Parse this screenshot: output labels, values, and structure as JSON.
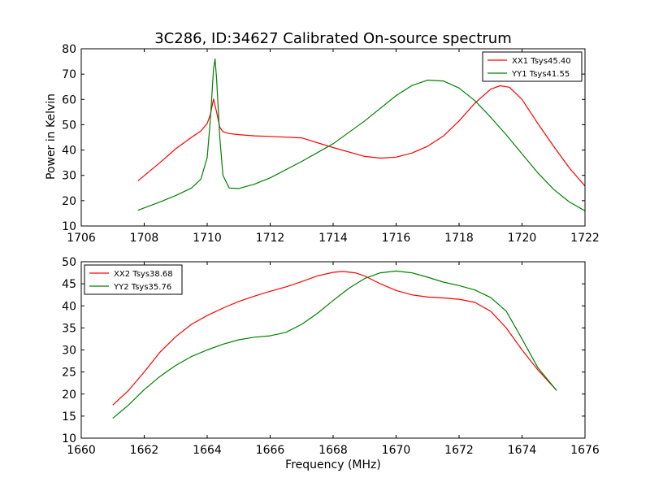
{
  "title": "3C286, ID:34627 Calibrated On-source spectrum",
  "chart_data": [
    {
      "type": "line",
      "ylabel": "Power in Kelvin",
      "xlabel": "",
      "xlim": [
        1706,
        1722
      ],
      "ylim": [
        10,
        80
      ],
      "xticks": [
        1706,
        1708,
        1710,
        1712,
        1714,
        1716,
        1718,
        1720,
        1722
      ],
      "yticks": [
        10,
        20,
        30,
        40,
        50,
        60,
        70,
        80
      ],
      "grid": false,
      "legend_position": "top-right",
      "series": [
        {
          "name": "XX1 Tsys45.40",
          "color": "#ff0000",
          "x": [
            1707.8,
            1708.5,
            1709.0,
            1709.5,
            1709.8,
            1710.0,
            1710.1,
            1710.2,
            1710.3,
            1710.4,
            1710.5,
            1710.7,
            1711.0,
            1711.5,
            1712.0,
            1713.0,
            1714.0,
            1715.0,
            1715.5,
            1716.0,
            1716.5,
            1717.0,
            1717.5,
            1718.0,
            1718.5,
            1719.0,
            1719.3,
            1719.6,
            1720.0,
            1720.5,
            1721.0,
            1721.5,
            1722.0
          ],
          "y": [
            27.8,
            35.0,
            40.5,
            45.0,
            47.5,
            50.5,
            54.0,
            60.2,
            55.0,
            49.0,
            47.2,
            46.5,
            46.1,
            45.6,
            45.4,
            44.8,
            41.0,
            37.5,
            36.8,
            37.2,
            38.8,
            41.5,
            45.5,
            51.5,
            58.5,
            64.0,
            65.4,
            64.8,
            60.0,
            50.5,
            41.5,
            33.0,
            25.8
          ]
        },
        {
          "name": "YY1 Tsys41.55",
          "color": "#008000",
          "x": [
            1707.8,
            1708.5,
            1709.0,
            1709.5,
            1709.8,
            1710.0,
            1710.1,
            1710.2,
            1710.25,
            1710.3,
            1710.4,
            1710.5,
            1710.7,
            1711.0,
            1711.5,
            1712.0,
            1713.0,
            1714.0,
            1715.0,
            1716.0,
            1716.5,
            1717.0,
            1717.5,
            1718.0,
            1718.5,
            1719.0,
            1719.5,
            1720.0,
            1720.5,
            1721.0,
            1721.5,
            1722.0
          ],
          "y": [
            16.2,
            19.5,
            22.0,
            25.0,
            28.5,
            37.0,
            52.0,
            72.0,
            76.0,
            68.0,
            45.0,
            30.0,
            25.0,
            24.8,
            26.5,
            29.0,
            35.5,
            42.5,
            51.5,
            61.5,
            65.5,
            67.6,
            67.3,
            64.5,
            59.5,
            53.0,
            46.0,
            38.5,
            31.0,
            24.5,
            19.5,
            16.0
          ]
        }
      ]
    },
    {
      "type": "line",
      "ylabel": "",
      "xlabel": "Frequency (MHz)",
      "xlim": [
        1660,
        1676
      ],
      "ylim": [
        10,
        50
      ],
      "xticks": [
        1660,
        1662,
        1664,
        1666,
        1668,
        1670,
        1672,
        1674,
        1676
      ],
      "yticks": [
        10,
        15,
        20,
        25,
        30,
        35,
        40,
        45,
        50
      ],
      "grid": false,
      "legend_position": "top-left",
      "series": [
        {
          "name": "XX2 Tsys38.68",
          "color": "#ff0000",
          "x": [
            1661.0,
            1661.5,
            1662.0,
            1662.5,
            1663.0,
            1663.5,
            1664.0,
            1664.5,
            1665.0,
            1665.5,
            1666.0,
            1666.5,
            1667.0,
            1667.5,
            1668.0,
            1668.3,
            1668.7,
            1669.0,
            1669.5,
            1670.0,
            1670.5,
            1671.0,
            1671.5,
            1672.0,
            1672.5,
            1673.0,
            1673.5,
            1674.0,
            1674.5,
            1675.1
          ],
          "y": [
            17.5,
            20.8,
            25.0,
            29.5,
            33.0,
            35.8,
            37.8,
            39.5,
            41.0,
            42.2,
            43.3,
            44.3,
            45.5,
            46.8,
            47.6,
            47.8,
            47.5,
            46.8,
            45.0,
            43.5,
            42.5,
            42.0,
            41.8,
            41.5,
            40.8,
            38.8,
            35.0,
            30.0,
            25.5,
            20.8
          ]
        },
        {
          "name": "YY2 Tsys35.76",
          "color": "#008000",
          "x": [
            1661.0,
            1661.5,
            1662.0,
            1662.5,
            1663.0,
            1663.5,
            1664.0,
            1664.5,
            1665.0,
            1665.5,
            1666.0,
            1666.5,
            1667.0,
            1667.5,
            1668.0,
            1668.5,
            1669.0,
            1669.5,
            1670.0,
            1670.5,
            1671.0,
            1671.5,
            1672.0,
            1672.5,
            1673.0,
            1673.5,
            1674.0,
            1674.5,
            1675.1
          ],
          "y": [
            14.5,
            17.5,
            21.0,
            24.0,
            26.5,
            28.5,
            30.0,
            31.3,
            32.3,
            32.9,
            33.2,
            34.0,
            35.8,
            38.3,
            41.2,
            44.0,
            46.2,
            47.5,
            47.9,
            47.5,
            46.5,
            45.4,
            44.6,
            43.6,
            41.9,
            38.8,
            32.5,
            26.0,
            20.8
          ]
        }
      ]
    }
  ]
}
